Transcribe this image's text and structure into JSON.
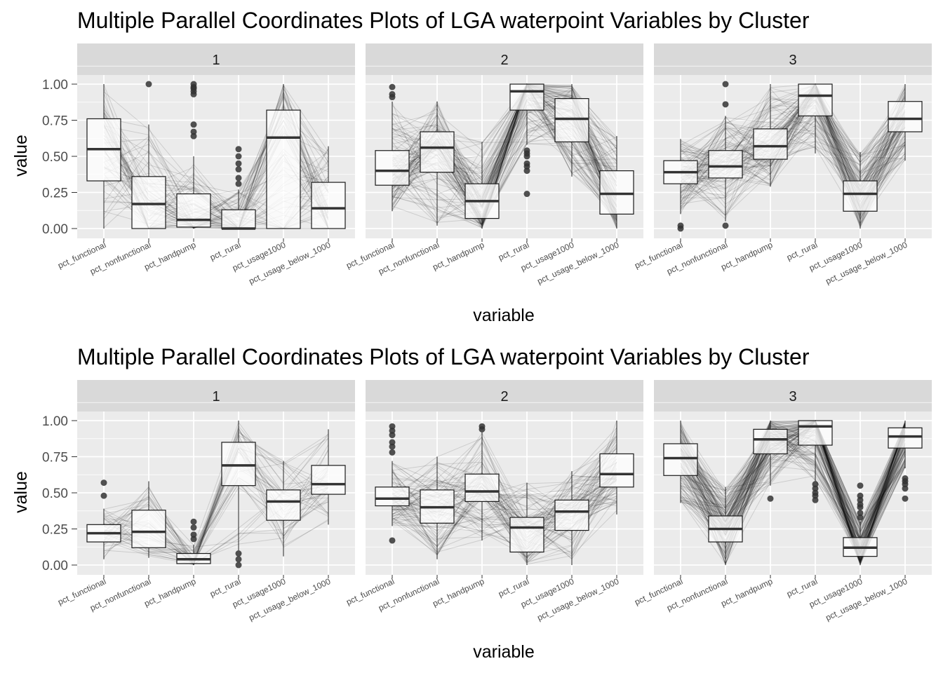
{
  "figure": {
    "colors": {
      "panel_bg": "#ebebeb",
      "strip_bg": "#d9d9d9",
      "grid": "#ffffff",
      "line": "#000000",
      "box_fill": "#ffffff",
      "box_stroke": "#1a1a1a",
      "median": "#333333",
      "outlier": "#333333",
      "text": "#000000",
      "tick_text": "#4d4d4d"
    }
  },
  "chart_data": [
    {
      "type": "parallel-coordinates-boxplot",
      "title": "Multiple Parallel Coordinates Plots of LGA waterpoint Variables by Cluster",
      "xlabel": "variable",
      "ylabel": "value",
      "ylim": [
        0,
        1.2
      ],
      "yticks": [
        "0.00",
        "0.25",
        "0.50",
        "0.75",
        "1.00"
      ],
      "variables": [
        "pct_functional",
        "pct_nonfunctional",
        "pct_handpump",
        "pct_rural",
        "pct_usage1000",
        "pct_usage_below_1000"
      ],
      "grid": true,
      "panels": [
        {
          "cluster": "1",
          "boxes": [
            {
              "min": 0.0,
              "q1": 0.33,
              "median": 0.55,
              "q3": 0.76,
              "max": 1.0,
              "outliers": []
            },
            {
              "min": 0.0,
              "q1": 0.0,
              "median": 0.17,
              "q3": 0.36,
              "max": 0.72,
              "outliers": [
                1.0
              ]
            },
            {
              "min": 0.0,
              "q1": 0.01,
              "median": 0.06,
              "q3": 0.24,
              "max": 0.5,
              "outliers": [
                0.64,
                0.67,
                0.72,
                0.93,
                0.95,
                0.97,
                0.98,
                1.0
              ]
            },
            {
              "min": 0.0,
              "q1": 0.0,
              "median": 0.0,
              "q3": 0.13,
              "max": 0.27,
              "outliers": [
                0.31,
                0.35,
                0.41,
                0.45,
                0.5,
                0.55
              ]
            },
            {
              "min": 0.0,
              "q1": 0.0,
              "median": 0.63,
              "q3": 0.82,
              "max": 1.0,
              "outliers": []
            },
            {
              "min": 0.0,
              "q1": 0.0,
              "median": 0.14,
              "q3": 0.32,
              "max": 0.57,
              "outliers": []
            }
          ],
          "line_count": 70
        },
        {
          "cluster": "2",
          "boxes": [
            {
              "min": 0.12,
              "q1": 0.3,
              "median": 0.4,
              "q3": 0.54,
              "max": 0.88,
              "outliers": [
                0.91,
                0.93,
                0.98
              ]
            },
            {
              "min": 0.02,
              "q1": 0.39,
              "median": 0.56,
              "q3": 0.67,
              "max": 0.88,
              "outliers": []
            },
            {
              "min": 0.0,
              "q1": 0.07,
              "median": 0.19,
              "q3": 0.31,
              "max": 0.6,
              "outliers": []
            },
            {
              "min": 0.58,
              "q1": 0.82,
              "median": 0.95,
              "q3": 1.0,
              "max": 1.0,
              "outliers": [
                0.24,
                0.4,
                0.43,
                0.45,
                0.5,
                0.52,
                0.54
              ]
            },
            {
              "min": 0.36,
              "q1": 0.6,
              "median": 0.76,
              "q3": 0.9,
              "max": 1.0,
              "outliers": []
            },
            {
              "min": 0.0,
              "q1": 0.1,
              "median": 0.24,
              "q3": 0.4,
              "max": 0.64,
              "outliers": []
            }
          ],
          "line_count": 120
        },
        {
          "cluster": "3",
          "boxes": [
            {
              "min": 0.1,
              "q1": 0.31,
              "median": 0.39,
              "q3": 0.47,
              "max": 0.62,
              "outliers": [
                0.0,
                0.02
              ]
            },
            {
              "min": 0.05,
              "q1": 0.35,
              "median": 0.43,
              "q3": 0.54,
              "max": 0.78,
              "outliers": [
                0.02,
                0.86,
                1.0
              ]
            },
            {
              "min": 0.29,
              "q1": 0.48,
              "median": 0.57,
              "q3": 0.69,
              "max": 1.0,
              "outliers": []
            },
            {
              "min": 0.52,
              "q1": 0.78,
              "median": 0.92,
              "q3": 1.0,
              "max": 1.0,
              "outliers": []
            },
            {
              "min": 0.0,
              "q1": 0.12,
              "median": 0.24,
              "q3": 0.33,
              "max": 0.53,
              "outliers": []
            },
            {
              "min": 0.47,
              "q1": 0.67,
              "median": 0.76,
              "q3": 0.88,
              "max": 1.0,
              "outliers": []
            }
          ],
          "line_count": 110
        }
      ]
    },
    {
      "type": "parallel-coordinates-boxplot",
      "title": "Multiple Parallel Coordinates Plots of LGA waterpoint Variables by Cluster",
      "xlabel": "variable",
      "ylabel": "value",
      "ylim": [
        0,
        1.2
      ],
      "yticks": [
        "0.00",
        "0.25",
        "0.50",
        "0.75",
        "1.00"
      ],
      "variables": [
        "pct_functional",
        "pct_nonfunctional",
        "pct_handpump",
        "pct_rural",
        "pct_usage1000",
        "pct_usage_below_1000"
      ],
      "grid": true,
      "panels": [
        {
          "cluster": "1",
          "boxes": [
            {
              "min": 0.04,
              "q1": 0.16,
              "median": 0.22,
              "q3": 0.28,
              "max": 0.39,
              "outliers": [
                0.48,
                0.57
              ]
            },
            {
              "min": 0.05,
              "q1": 0.12,
              "median": 0.23,
              "q3": 0.38,
              "max": 0.58,
              "outliers": []
            },
            {
              "min": 0.0,
              "q1": 0.01,
              "median": 0.04,
              "q3": 0.08,
              "max": 0.14,
              "outliers": [
                0.18,
                0.21,
                0.26,
                0.3
              ]
            },
            {
              "min": 0.1,
              "q1": 0.55,
              "median": 0.69,
              "q3": 0.85,
              "max": 1.0,
              "outliers": [
                0.0,
                0.04,
                0.08
              ]
            },
            {
              "min": 0.06,
              "q1": 0.31,
              "median": 0.44,
              "q3": 0.52,
              "max": 0.72,
              "outliers": []
            },
            {
              "min": 0.28,
              "q1": 0.49,
              "median": 0.56,
              "q3": 0.69,
              "max": 0.94,
              "outliers": []
            }
          ],
          "line_count": 45
        },
        {
          "cluster": "2",
          "boxes": [
            {
              "min": 0.27,
              "q1": 0.41,
              "median": 0.46,
              "q3": 0.54,
              "max": 0.72,
              "outliers": [
                0.17,
                0.78,
                0.82,
                0.85,
                0.9,
                0.93,
                0.96
              ]
            },
            {
              "min": 0.04,
              "q1": 0.29,
              "median": 0.4,
              "q3": 0.52,
              "max": 0.75,
              "outliers": []
            },
            {
              "min": 0.17,
              "q1": 0.44,
              "median": 0.51,
              "q3": 0.63,
              "max": 0.92,
              "outliers": [
                0.94,
                0.96
              ]
            },
            {
              "min": 0.0,
              "q1": 0.09,
              "median": 0.26,
              "q3": 0.33,
              "max": 0.57,
              "outliers": []
            },
            {
              "min": 0.0,
              "q1": 0.24,
              "median": 0.37,
              "q3": 0.45,
              "max": 0.65,
              "outliers": []
            },
            {
              "min": 0.35,
              "q1": 0.54,
              "median": 0.63,
              "q3": 0.77,
              "max": 1.0,
              "outliers": []
            }
          ],
          "line_count": 90
        },
        {
          "cluster": "3",
          "boxes": [
            {
              "min": 0.43,
              "q1": 0.62,
              "median": 0.74,
              "q3": 0.84,
              "max": 1.0,
              "outliers": []
            },
            {
              "min": 0.0,
              "q1": 0.16,
              "median": 0.25,
              "q3": 0.34,
              "max": 0.54,
              "outliers": []
            },
            {
              "min": 0.55,
              "q1": 0.77,
              "median": 0.87,
              "q3": 0.94,
              "max": 1.0,
              "outliers": [
                0.46
              ]
            },
            {
              "min": 0.58,
              "q1": 0.83,
              "median": 0.96,
              "q3": 1.0,
              "max": 1.0,
              "outliers": [
                0.45,
                0.48,
                0.5,
                0.53,
                0.56
              ]
            },
            {
              "min": 0.0,
              "q1": 0.06,
              "median": 0.12,
              "q3": 0.19,
              "max": 0.3,
              "outliers": [
                0.33,
                0.36,
                0.4,
                0.42,
                0.45,
                0.48,
                0.55
              ]
            },
            {
              "min": 0.67,
              "q1": 0.81,
              "median": 0.89,
              "q3": 0.95,
              "max": 1.0,
              "outliers": [
                0.46,
                0.53,
                0.56,
                0.58,
                0.6
              ]
            }
          ],
          "line_count": 140
        }
      ]
    }
  ]
}
